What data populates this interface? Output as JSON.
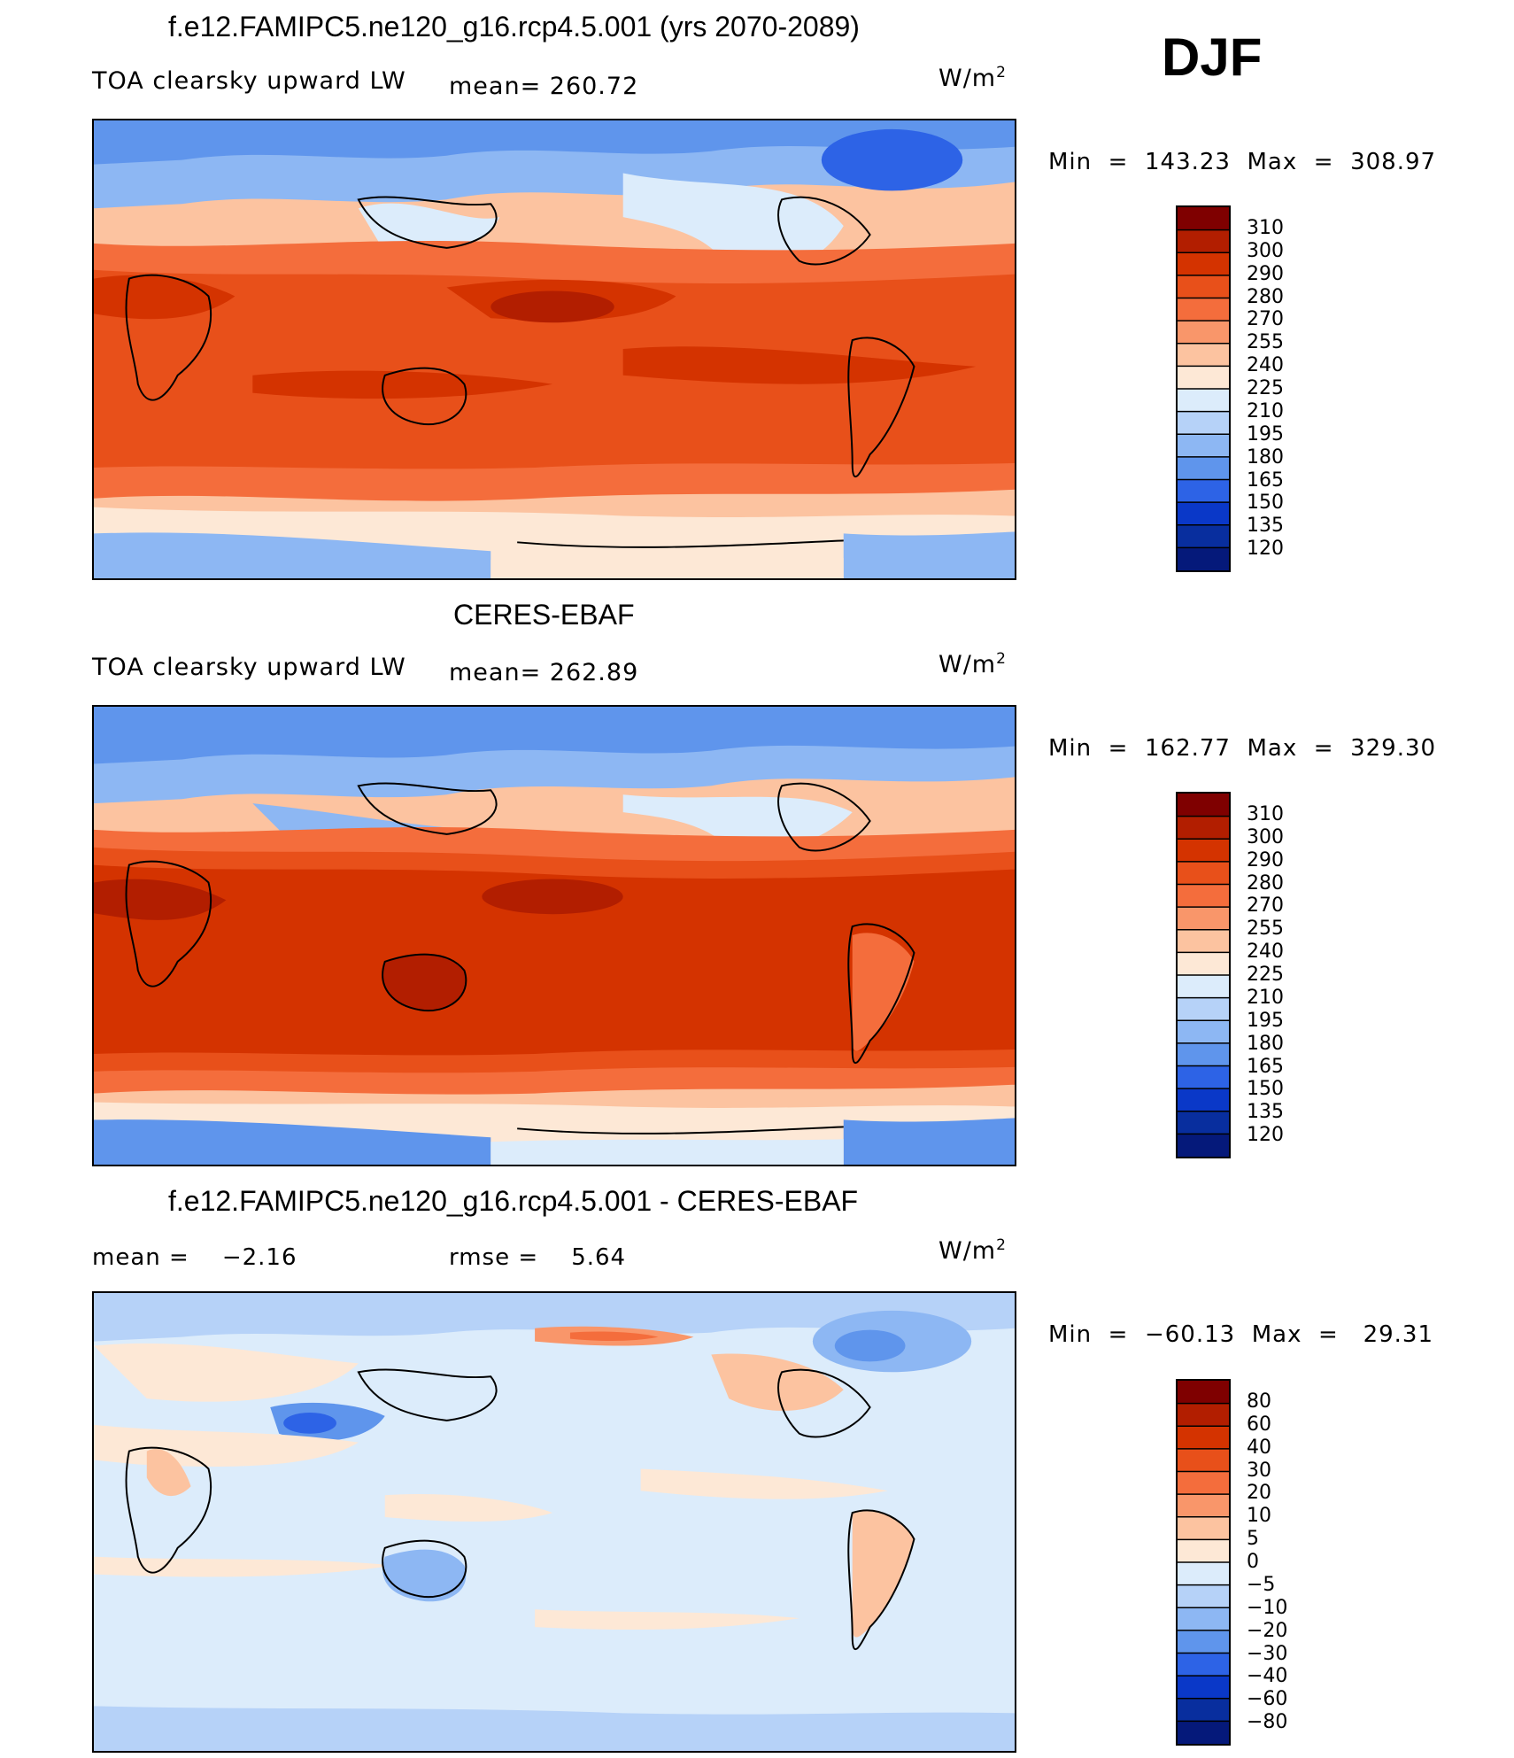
{
  "season": "DJF",
  "units_prefix": "W/m",
  "units_exp": "2",
  "panels": [
    {
      "title": "f.e12.FAMIPC5.ne120_g16.rcp4.5.001 (yrs 2070-2089)",
      "field": "TOA clearsky upward LW",
      "mean_text": "mean= 260.72",
      "minmax_text": "Min  =  143.23  Max  =  308.97",
      "colorbar": {
        "labels": [
          "310",
          "300",
          "290",
          "280",
          "270",
          "255",
          "240",
          "225",
          "210",
          "195",
          "180",
          "165",
          "150",
          "135",
          "120"
        ],
        "colors": [
          "#7f0000",
          "#b21e00",
          "#d43300",
          "#e8501a",
          "#f46d3c",
          "#f9966a",
          "#fcc3a0",
          "#fde8d6",
          "#dcecfb",
          "#b6d2f8",
          "#8db7f3",
          "#5f95ec",
          "#2d63e6",
          "#0a38c8",
          "#082e9e",
          "#05197a"
        ]
      }
    },
    {
      "title": "CERES-EBAF",
      "field": "TOA clearsky upward LW",
      "mean_text": "mean= 262.89",
      "minmax_text": "Min  =  162.77  Max  =  329.30",
      "colorbar": {
        "labels": [
          "310",
          "300",
          "290",
          "280",
          "270",
          "255",
          "240",
          "225",
          "210",
          "195",
          "180",
          "165",
          "150",
          "135",
          "120"
        ],
        "colors": [
          "#7f0000",
          "#b21e00",
          "#d43300",
          "#e8501a",
          "#f46d3c",
          "#f9966a",
          "#fcc3a0",
          "#fde8d6",
          "#dcecfb",
          "#b6d2f8",
          "#8db7f3",
          "#5f95ec",
          "#2d63e6",
          "#0a38c8",
          "#082e9e",
          "#05197a"
        ]
      }
    },
    {
      "title": "f.e12.FAMIPC5.ne120_g16.rcp4.5.001 - CERES-EBAF",
      "mean_text": "mean =    −2.16",
      "rmse_text": "rmse =    5.64",
      "minmax_text": "Min  =  −60.13  Max  =   29.31",
      "colorbar": {
        "labels": [
          "80",
          "60",
          "40",
          "30",
          "20",
          "10",
          "5",
          "0",
          "−5",
          "−10",
          "−20",
          "−30",
          "−40",
          "−60",
          "−80"
        ],
        "colors": [
          "#7f0000",
          "#b21e00",
          "#d43300",
          "#e8501a",
          "#f46d3c",
          "#f9966a",
          "#fcc3a0",
          "#fde8d6",
          "#dcecfb",
          "#b6d2f8",
          "#8db7f3",
          "#5f95ec",
          "#2d63e6",
          "#0a38c8",
          "#082e9e",
          "#05197a"
        ]
      }
    }
  ]
}
